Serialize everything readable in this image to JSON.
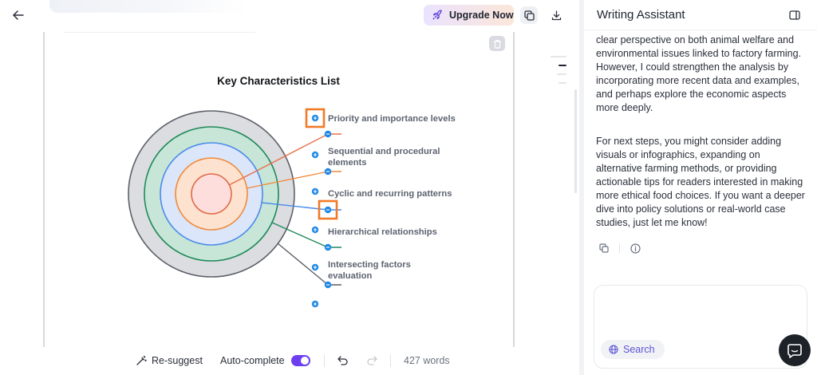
{
  "toolbar": {
    "upgrade_label": "Upgrade Now"
  },
  "document": {
    "diagram": {
      "title": "Key Characteristics List",
      "labels": [
        [
          "Priority and importance levels"
        ],
        [
          "Sequential and procedural",
          "elements"
        ],
        [
          "Cyclic and recurring patterns"
        ],
        [
          "Hierarchical relationships"
        ],
        [
          "Intersecting factors",
          "evaluation"
        ]
      ]
    }
  },
  "bottom_bar": {
    "resuggest_label": "Re-suggest",
    "autocomplete_label": "Auto-complete",
    "autocomplete_on": true,
    "word_count": "427 words"
  },
  "assistant": {
    "title": "Writing Assistant",
    "messages": [
      "clear perspective on both animal welfare and environmental issues linked to factory farming. However, I could strengthen the analysis by incorporating more recent data and examples, and perhaps explore the economic aspects more deeply.",
      "For next steps, you might consider adding visuals or infographics, expanding on alternative farming methods, or providing actionable tips for readers interested in making more ethical food choices. If you want a deeper dive into policy solutions or real-world case studies, just let me know!"
    ],
    "composer_placeholder": "",
    "search_label": "Search"
  },
  "colors": {
    "accent": "#6d3ff0",
    "handle_blue": "#1e88e5",
    "selection_orange": "#f07a28",
    "ring_outer": "#dcdde1",
    "ring_green": "#c8e6d8",
    "ring_blue": "#dbe6fb",
    "ring_orange": "#fde2cf",
    "ring_core": "#fddedd"
  }
}
